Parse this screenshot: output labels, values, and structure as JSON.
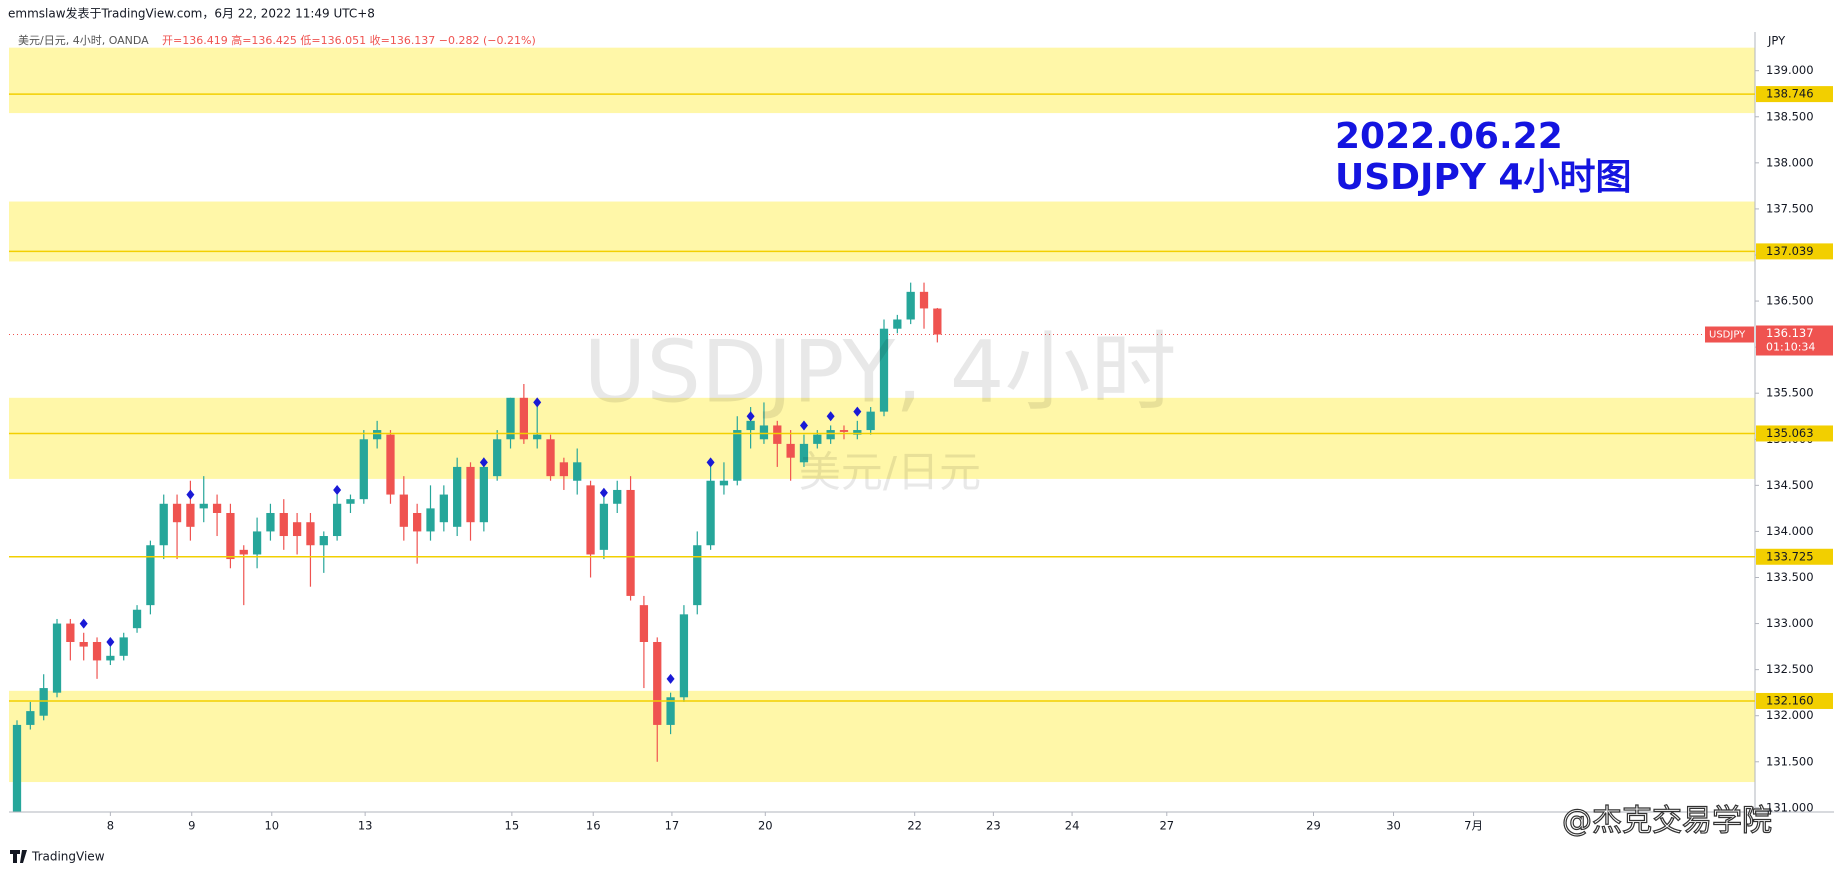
{
  "chart_data": {
    "type": "candlestick",
    "header": "emmslaw发表于TradingView.com，6月 22, 2022 11:49 UTC+8",
    "legend_symbol": "美元/日元, 4小时, OANDA",
    "legend_ohlc": "开=136.419 高=136.425 低=136.051 收=136.137 −0.282 (−0.21%)",
    "annotation": [
      "2022.06.22",
      "USDJPY 4小时图"
    ],
    "watermark": [
      "USDJPY, 4小时",
      "美元/日元"
    ],
    "y_unit": "JPY",
    "footer": "TradingView",
    "credit": "@杰克交易学院",
    "up_color": "#26a69a",
    "down_color": "#ef5350",
    "open": [
      130.95,
      131.9,
      132.0,
      132.25,
      133.0,
      132.8,
      132.8,
      132.6,
      132.65,
      132.95,
      133.2,
      133.85,
      134.3,
      134.3,
      134.25,
      134.3,
      134.2,
      133.8,
      133.75,
      134.0,
      134.2,
      134.1,
      134.1,
      133.85,
      133.95,
      134.3,
      134.35,
      135.0,
      135.05,
      134.4,
      134.2,
      134.0,
      134.1,
      134.05,
      134.7,
      134.1,
      134.6,
      135.0,
      135.45,
      135.0,
      135.0,
      134.75,
      134.55,
      134.5,
      133.8,
      134.3,
      134.45,
      133.2,
      132.8,
      131.9,
      132.2,
      133.2,
      133.85,
      134.5,
      134.55,
      135.1,
      135.0,
      135.15,
      134.95,
      134.75,
      134.95,
      135.0,
      135.1,
      135.05,
      135.1,
      135.3,
      136.2,
      136.3,
      136.6,
      136.419
    ],
    "high": [
      131.95,
      132.15,
      132.45,
      133.05,
      133.05,
      132.9,
      132.85,
      132.75,
      132.9,
      133.2,
      133.9,
      134.4,
      134.4,
      134.55,
      134.6,
      134.4,
      134.3,
      133.85,
      134.15,
      134.3,
      134.35,
      134.2,
      134.2,
      134.0,
      134.4,
      134.4,
      135.1,
      135.2,
      135.1,
      134.6,
      134.3,
      134.5,
      134.5,
      134.8,
      134.75,
      134.8,
      135.1,
      135.45,
      135.6,
      135.4,
      135.05,
      134.8,
      134.9,
      134.55,
      134.4,
      134.55,
      134.6,
      133.3,
      132.85,
      132.25,
      133.2,
      134.0,
      134.7,
      134.75,
      135.25,
      135.35,
      135.4,
      135.2,
      135.1,
      135.05,
      135.1,
      135.15,
      135.15,
      135.2,
      135.35,
      136.3,
      136.35,
      136.7,
      136.7,
      136.425
    ],
    "low": [
      130.9,
      131.85,
      131.95,
      132.2,
      132.6,
      132.6,
      132.4,
      132.55,
      132.6,
      132.9,
      133.1,
      133.7,
      133.7,
      133.9,
      134.1,
      133.95,
      133.6,
      133.2,
      133.6,
      133.9,
      133.8,
      133.75,
      133.4,
      133.55,
      133.9,
      134.2,
      134.3,
      134.9,
      134.3,
      133.9,
      133.65,
      133.9,
      134.0,
      133.95,
      133.9,
      134.0,
      134.55,
      134.9,
      134.95,
      134.9,
      134.55,
      134.45,
      134.4,
      133.5,
      133.7,
      134.2,
      133.25,
      132.3,
      131.5,
      131.8,
      132.15,
      133.1,
      133.8,
      134.4,
      134.5,
      134.9,
      134.95,
      134.7,
      134.55,
      134.7,
      134.9,
      134.95,
      135.0,
      135.0,
      135.05,
      135.25,
      136.15,
      136.25,
      136.2,
      136.051
    ],
    "close": [
      131.9,
      132.05,
      132.3,
      133.0,
      132.8,
      132.75,
      132.6,
      132.65,
      132.85,
      133.15,
      133.85,
      134.3,
      134.1,
      134.05,
      134.3,
      134.2,
      133.7,
      133.75,
      134.0,
      134.2,
      133.95,
      133.95,
      133.85,
      133.95,
      134.3,
      134.35,
      135.0,
      135.1,
      134.4,
      134.05,
      134.0,
      134.25,
      134.4,
      134.7,
      134.1,
      134.7,
      135.0,
      135.45,
      135.0,
      135.05,
      134.6,
      134.6,
      134.75,
      133.75,
      134.3,
      134.45,
      133.3,
      132.8,
      131.9,
      132.2,
      133.1,
      133.85,
      134.55,
      134.55,
      135.1,
      135.2,
      135.15,
      134.95,
      134.8,
      134.95,
      135.05,
      135.1,
      135.08,
      135.1,
      135.3,
      136.2,
      136.3,
      136.6,
      136.42,
      136.137
    ],
    "markers": {
      "color": "#1a1ad6",
      "x": [
        5,
        7,
        13,
        24,
        35,
        39,
        44,
        49,
        52,
        55,
        59,
        61,
        63
      ],
      "values": [
        133.0,
        132.8,
        134.4,
        134.45,
        134.75,
        135.4,
        134.42,
        132.4,
        134.75,
        135.25,
        135.15,
        135.25,
        135.3
      ]
    },
    "zones": [
      [
        138.54,
        139.25
      ],
      [
        136.93,
        137.58
      ],
      [
        134.57,
        135.45
      ],
      [
        131.28,
        132.27
      ]
    ],
    "zone_color": "#fff7a8",
    "levels": [
      138.746,
      137.039,
      135.063,
      133.725,
      {
        "value": 132.16,
        "label": "132.160"
      }
    ],
    "level_color": "#f2cf00",
    "last": {
      "value": 136.137,
      "symbol": "USDJPY",
      "countdown": "01:10:34"
    },
    "xlim": [
      -0.6,
      130.3
    ],
    "ylim": [
      130.955,
      139.42
    ],
    "xticks": [
      {
        "value": 7.0,
        "label": "8"
      },
      {
        "value": 13.1,
        "label": "9"
      },
      {
        "value": 19.1,
        "label": "10"
      },
      {
        "value": 26.1,
        "label": "13"
      },
      {
        "value": 37.1,
        "label": "15"
      },
      {
        "value": 43.2,
        "label": "16"
      },
      {
        "value": 49.1,
        "label": "17"
      },
      {
        "value": 56.1,
        "label": "20"
      },
      {
        "value": 67.3,
        "label": "22"
      },
      {
        "value": 73.2,
        "label": "23"
      },
      {
        "value": 79.1,
        "label": "24"
      },
      {
        "value": 86.2,
        "label": "27"
      },
      {
        "value": 97.2,
        "label": "29"
      },
      {
        "value": 103.2,
        "label": "30"
      },
      {
        "value": 109.2,
        "label": "7月"
      }
    ],
    "yticks": [
      {
        "value": 131,
        "label": "131.000"
      },
      {
        "value": 131.5,
        "label": "131.500"
      },
      {
        "value": 132,
        "label": "132.000"
      },
      {
        "value": 132.5,
        "label": "132.500"
      },
      {
        "value": 133,
        "label": "133.000"
      },
      {
        "value": 133.5,
        "label": "133.500"
      },
      {
        "value": 134,
        "label": "134.000"
      },
      {
        "value": 134.5,
        "label": "134.500"
      },
      {
        "value": 135,
        "label": "135.000"
      },
      {
        "value": 135.5,
        "label": "135.500"
      },
      {
        "value": 136,
        "label": "136.000"
      },
      {
        "value": 136.5,
        "label": "136.500"
      },
      {
        "value": 137,
        "label": "137.000"
      },
      {
        "value": 137.5,
        "label": "137.500"
      },
      {
        "value": 138,
        "label": "138.000"
      },
      {
        "value": 138.5,
        "label": "138.500"
      },
      {
        "value": 139,
        "label": "139.000"
      }
    ]
  }
}
